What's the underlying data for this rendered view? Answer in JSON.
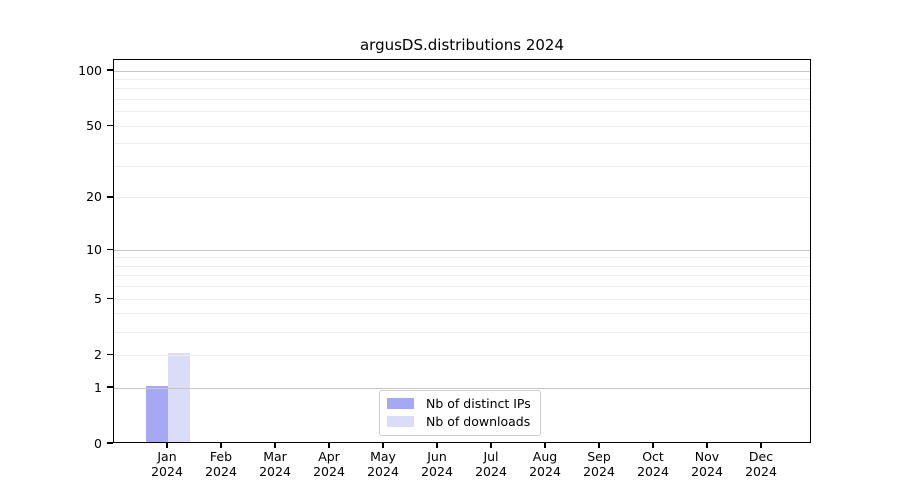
{
  "chart_data": {
    "type": "bar",
    "title": "argusDS.distributions 2024",
    "x_tick_year": "2024",
    "categories": [
      "Jan",
      "Feb",
      "Mar",
      "Apr",
      "May",
      "Jun",
      "Jul",
      "Aug",
      "Sep",
      "Oct",
      "Nov",
      "Dec"
    ],
    "series": [
      {
        "name": "Nb of distinct IPs",
        "color": "#a6a8f3",
        "values": [
          1,
          0,
          0,
          0,
          0,
          0,
          0,
          0,
          0,
          0,
          0,
          0
        ]
      },
      {
        "name": "Nb of downloads",
        "color": "#dadcf8",
        "values": [
          2,
          0,
          0,
          0,
          0,
          0,
          0,
          0,
          0,
          0,
          0,
          0
        ]
      }
    ],
    "y_axis": {
      "scale": "log1p",
      "ticks": [
        0,
        1,
        2,
        5,
        10,
        20,
        50,
        100
      ],
      "major_gridlines": [
        1,
        10,
        100
      ],
      "minor_gridlines": [
        2,
        3,
        4,
        5,
        6,
        7,
        8,
        9,
        20,
        30,
        40,
        50,
        60,
        70,
        80,
        90
      ]
    },
    "legend": {
      "position": "lower center"
    },
    "colors": {
      "spine": "#000000",
      "major_grid": "#c6c6c6",
      "minor_grid": "#ededed",
      "text": "#000000",
      "background": "#ffffff"
    },
    "grid": true
  }
}
